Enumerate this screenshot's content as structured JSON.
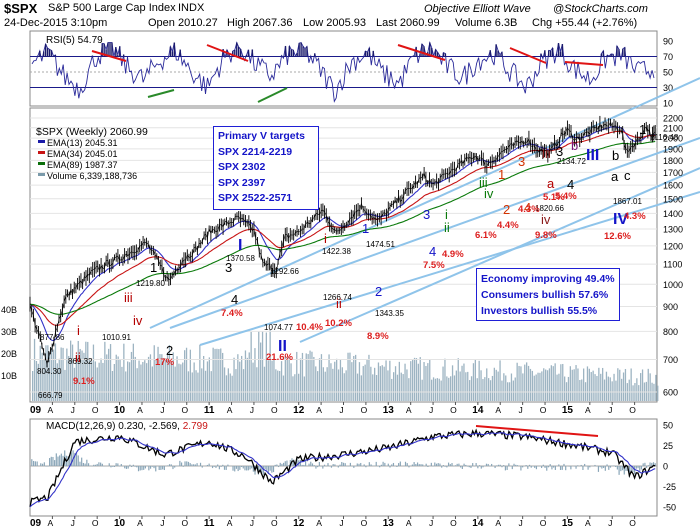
{
  "header": {
    "symbol": "$SPX",
    "name": "S&P 500 Large Cap Index",
    "exchange": "INDX",
    "datetime": "24-Dec-2015 3:10pm",
    "open": "Open 2010.27",
    "high": "High 2067.36",
    "low": "Low 2005.93",
    "last": "Last 2060.99",
    "volume": "Volume 6.3B",
    "chg": "Chg +55.44 (+2.76%)",
    "watermark": "Objective Elliott Wave",
    "source": "@StockCharts.com"
  },
  "rsi_panel": {
    "label": "RSI(5) 54.79",
    "ticks": [
      "90",
      "70",
      "50",
      "30",
      "10"
    ],
    "levels": [
      70,
      30
    ]
  },
  "price_panel": {
    "legend": [
      {
        "text": "$SPX (Weekly) 2060.99",
        "color": "#000000"
      },
      {
        "text": "EMA(13) 2045.31",
        "color": "#1a1aa8"
      },
      {
        "text": "EMA(34) 2045.01",
        "color": "#c81414"
      },
      {
        "text": "EMA(89) 1987.37",
        "color": "#0a6e0a"
      },
      {
        "text": "Volume 6,339,188,736",
        "color": "#7a9aaa"
      }
    ],
    "targets_box": [
      "Primary V targets",
      "SPX 2214-2219",
      "SPX 2302",
      "SPX 2397",
      "SPX 2522-2571"
    ],
    "sentiment_box": [
      "Economy improving 49.4%",
      "Consumers bullish 57.6%",
      "Investors bullish 55.5%"
    ],
    "y_ticks": [
      "2200",
      "2100",
      "2000",
      "1900",
      "1800",
      "1700",
      "1600",
      "1500",
      "1400",
      "1300",
      "1200",
      "1100",
      "1000",
      "900",
      "800",
      "700",
      "600"
    ],
    "volume_ticks": [
      "40B",
      "30B",
      "20B",
      "10B"
    ],
    "price_labels": [
      "877.86",
      "804.30",
      "666.79",
      "869.32",
      "1010.91",
      "1219.80",
      "1370.58",
      "1292.66",
      "1074.77",
      "1422.38",
      "1266.74",
      "1474.51",
      "1343.35",
      "2134.72",
      "2116.48",
      "1820.66",
      "1867.01"
    ],
    "wave_labels": [
      {
        "t": "i",
        "c": "#b40000"
      },
      {
        "t": "ii",
        "c": "#b40000"
      },
      {
        "t": "iii",
        "c": "#b40000"
      },
      {
        "t": "iv",
        "c": "#b40000"
      },
      {
        "t": "1",
        "c": "#000000"
      },
      {
        "t": "2",
        "c": "#000000"
      },
      {
        "t": "3",
        "c": "#000000"
      },
      {
        "t": "4",
        "c": "#000000"
      },
      {
        "t": "I",
        "c": "#1414c8"
      },
      {
        "t": "II",
        "c": "#1414c8"
      },
      {
        "t": "1",
        "c": "#1414c8"
      },
      {
        "t": "2",
        "c": "#1414c8"
      },
      {
        "t": "3",
        "c": "#1414c8"
      },
      {
        "t": "4",
        "c": "#1414c8"
      },
      {
        "t": "i",
        "c": "#b40000"
      },
      {
        "t": "ii",
        "c": "#b40000"
      },
      {
        "t": "iii",
        "c": "#0a7a0a"
      },
      {
        "t": "iv",
        "c": "#0a7a0a"
      },
      {
        "t": "i",
        "c": "#0a7a0a"
      },
      {
        "t": "ii",
        "c": "#0a7a0a"
      },
      {
        "t": "1",
        "c": "#d23200"
      },
      {
        "t": "2",
        "c": "#d23200"
      },
      {
        "t": "3",
        "c": "#d23200"
      },
      {
        "t": "4",
        "c": "#d23200"
      },
      {
        "t": "iii",
        "c": "#8a1a1a"
      },
      {
        "t": "iv",
        "c": "#8a1a1a"
      },
      {
        "t": "3",
        "c": "#000000"
      },
      {
        "t": "4",
        "c": "#000000"
      },
      {
        "t": "III",
        "c": "#1414c8"
      },
      {
        "t": "IV",
        "c": "#1414c8"
      },
      {
        "t": "a",
        "c": "#b40000"
      },
      {
        "t": "b",
        "c": "#7a1a7a"
      },
      {
        "t": "a",
        "c": "#000000"
      },
      {
        "t": "b",
        "c": "#000000"
      },
      {
        "t": "c",
        "c": "#000000"
      },
      {
        "t": "1",
        "c": "#000000"
      }
    ],
    "pct_labels": [
      "9.1%",
      "17%",
      "7.4%",
      "21.6%",
      "10.4%",
      "10.2%",
      "8.9%",
      "7.5%",
      "4.9%",
      "6.1%",
      "4.4%",
      "4.3%",
      "5.4%",
      "5.1%",
      "9.8%",
      "4.3%",
      "12.6%"
    ]
  },
  "x_axis": {
    "labels": [
      "09",
      "A",
      "J",
      "O",
      "10",
      "A",
      "J",
      "O",
      "11",
      "A",
      "J",
      "O",
      "12",
      "A",
      "J",
      "O",
      "13",
      "A",
      "J",
      "O",
      "14",
      "A",
      "J",
      "O",
      "15",
      "A",
      "J",
      "O"
    ]
  },
  "macd_panel": {
    "label_main": "MACD(12,26,9) 0.230, -2.569, ",
    "label_hist": "2.799",
    "ticks": [
      "50",
      "25",
      "0",
      "-25",
      "-50"
    ]
  },
  "chart_data": {
    "type": "line",
    "series": [
      {
        "name": "$SPX (Weekly)",
        "x": [
          2009.0,
          2009.19,
          2009.4,
          2009.55,
          2009.7,
          2009.85,
          2010.0,
          2010.3,
          2010.55,
          2010.7,
          2010.85,
          2011.0,
          2011.33,
          2011.5,
          2011.6,
          2011.75,
          2011.85,
          2012.0,
          2012.27,
          2012.42,
          2012.7,
          2012.88,
          2013.0,
          2013.4,
          2013.5,
          2013.7,
          2013.95,
          2014.0,
          2014.1,
          2014.3,
          2014.55,
          2014.65,
          2014.8,
          2014.93,
          2015.0,
          2015.1,
          2015.4,
          2015.6,
          2015.65,
          2015.8,
          2015.88,
          2015.95,
          2015.98
        ],
        "y": [
          900,
          680,
          940,
          1000,
          1060,
          1100,
          1130,
          1217,
          1015,
          1120,
          1180,
          1280,
          1370,
          1290,
          1100,
          1075,
          1250,
          1280,
          1420,
          1270,
          1450,
          1345,
          1420,
          1670,
          1600,
          1710,
          1840,
          1830,
          1760,
          1890,
          1990,
          1905,
          1860,
          2020,
          2075,
          1990,
          2130,
          2100,
          1870,
          1990,
          2116,
          2005,
          2060
        ]
      },
      {
        "name": "RSI(5)",
        "points": 40,
        "y": [
          60,
          75,
          45,
          28,
          70,
          82,
          55,
          40,
          65,
          78,
          50,
          30,
          68,
          85,
          60,
          45,
          72,
          80,
          55,
          25,
          62,
          76,
          48,
          35,
          70,
          82,
          58,
          42,
          66,
          74,
          50,
          30,
          64,
          80,
          55,
          40,
          68,
          72,
          50,
          55
        ]
      },
      {
        "name": "MACD",
        "x": [
          2009,
          2009.2,
          2009.5,
          2010,
          2010.5,
          2011,
          2011.4,
          2011.7,
          2012,
          2012.5,
          2013,
          2013.5,
          2014,
          2014.5,
          2015,
          2015.5,
          2015.75,
          2015.98
        ],
        "y": [
          -45,
          -38,
          30,
          36,
          14,
          30,
          12,
          -20,
          8,
          14,
          22,
          36,
          40,
          36,
          27,
          16,
          -14,
          0.23
        ]
      }
    ],
    "ylim": [
      600,
      2200
    ],
    "yscale": "log",
    "xlim": [
      2009,
      2016
    ],
    "legend": "top-left"
  }
}
